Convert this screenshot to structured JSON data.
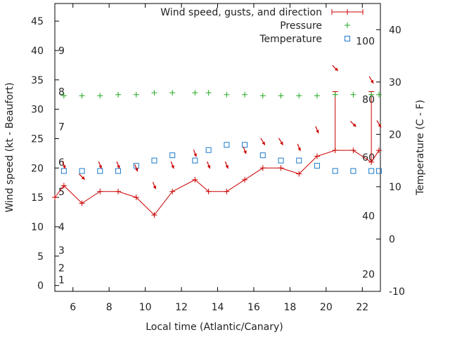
{
  "chart_data": {
    "type": "line",
    "xlabel": "Local time (Atlantic/Canary)",
    "ylabel": "Wind speed (kt - Beaufort)",
    "y2label": "Temperature (C - F)",
    "xlim": [
      5,
      23
    ],
    "ylim": [
      -1,
      48
    ],
    "y2lim": [
      -10,
      45
    ],
    "x_ticks": [
      6,
      8,
      10,
      12,
      14,
      16,
      18,
      20,
      22
    ],
    "y_ticks": [
      0,
      5,
      10,
      15,
      20,
      25,
      30,
      35,
      40,
      45
    ],
    "y2_ticks": [
      -10,
      0,
      10,
      20,
      30,
      40
    ],
    "beaufort_ticks": [
      {
        "kt": 1,
        "label": "1"
      },
      {
        "kt": 3,
        "label": "2"
      },
      {
        "kt": 6,
        "label": "3"
      },
      {
        "kt": 10,
        "label": "4"
      },
      {
        "kt": 16,
        "label": "5"
      },
      {
        "kt": 21,
        "label": "6"
      },
      {
        "kt": 27,
        "label": "7"
      },
      {
        "kt": 33,
        "label": "8"
      },
      {
        "kt": 40,
        "label": "9"
      }
    ],
    "fahrenheit_ticks": [
      {
        "c": -6.7,
        "label": "20"
      },
      {
        "c": 4.4,
        "label": "40"
      },
      {
        "c": 15.6,
        "label": "60"
      },
      {
        "c": 26.7,
        "label": "80"
      },
      {
        "c": 37.8,
        "label": "100"
      }
    ],
    "legend_position": "top-right",
    "series": [
      {
        "name": "Wind speed, gusts, and direction",
        "color": "#cc0000",
        "x": [
          5,
          5.5,
          6.5,
          7.5,
          8.5,
          9.5,
          10.5,
          11.5,
          12.75,
          13.5,
          14.5,
          15.5,
          16.5,
          17.5,
          18.5,
          19.5,
          20.5,
          21.5,
          22.5,
          22.92
        ],
        "values": [
          15,
          17,
          14,
          16,
          16,
          15,
          12,
          16,
          18,
          16,
          16,
          18,
          20,
          20,
          19,
          22,
          23,
          23,
          21,
          23
        ],
        "gusts": [
          {
            "x": 20.5,
            "value": 33
          },
          {
            "x": 22.5,
            "value": 33
          }
        ],
        "direction_arrows": [
          {
            "x": 5.5,
            "y": 20.5,
            "dx": 4,
            "dy": 10
          },
          {
            "x": 6.5,
            "y": 18.5,
            "dx": 8,
            "dy": 8
          },
          {
            "x": 7.5,
            "y": 20.5,
            "dx": 4,
            "dy": 10
          },
          {
            "x": 8.5,
            "y": 20.5,
            "dx": 4,
            "dy": 10
          },
          {
            "x": 9.5,
            "y": 20.0,
            "dx": 4,
            "dy": 10
          },
          {
            "x": 10.5,
            "y": 17.0,
            "dx": 4,
            "dy": 10
          },
          {
            "x": 11.5,
            "y": 20.5,
            "dx": 4,
            "dy": 10
          },
          {
            "x": 12.75,
            "y": 22.5,
            "dx": 4,
            "dy": 10
          },
          {
            "x": 13.5,
            "y": 20.5,
            "dx": 4,
            "dy": 10
          },
          {
            "x": 14.5,
            "y": 20.5,
            "dx": 4,
            "dy": 10
          },
          {
            "x": 15.5,
            "y": 23.0,
            "dx": 4,
            "dy": 10
          },
          {
            "x": 16.5,
            "y": 24.5,
            "dx": 6,
            "dy": 10
          },
          {
            "x": 17.5,
            "y": 24.5,
            "dx": 6,
            "dy": 10
          },
          {
            "x": 18.5,
            "y": 23.5,
            "dx": 4,
            "dy": 10
          },
          {
            "x": 19.5,
            "y": 26.5,
            "dx": 4,
            "dy": 10
          },
          {
            "x": 20.5,
            "y": 37.0,
            "dx": 8,
            "dy": 8
          },
          {
            "x": 21.5,
            "y": 27.5,
            "dx": 8,
            "dy": 8
          },
          {
            "x": 22.5,
            "y": 35.0,
            "dx": 6,
            "dy": 10
          },
          {
            "x": 22.92,
            "y": 27.5,
            "dx": 6,
            "dy": 10
          }
        ]
      },
      {
        "name": "Pressure",
        "color": "#22aa22",
        "marker": "plus",
        "x": [
          5.5,
          6.5,
          7.5,
          8.5,
          9.5,
          10.5,
          11.5,
          12.75,
          13.5,
          14.5,
          15.5,
          16.5,
          17.5,
          18.5,
          19.5,
          20.5,
          21.5,
          22.5,
          22.92
        ],
        "values": [
          32.3,
          32.3,
          32.3,
          32.5,
          32.5,
          32.8,
          32.8,
          32.8,
          32.8,
          32.5,
          32.5,
          32.3,
          32.3,
          32.3,
          32.3,
          32.5,
          32.5,
          32.5,
          32.5
        ]
      },
      {
        "name": "Temperature",
        "color": "#1a7acc",
        "marker": "square",
        "axis": "y2",
        "x": [
          5.5,
          6.5,
          7.5,
          8.5,
          9.5,
          10.5,
          11.5,
          12.75,
          13.5,
          14.5,
          15.5,
          16.5,
          17.5,
          18.5,
          19.5,
          20.5,
          21.5,
          22.5,
          22.92
        ],
        "values": [
          13,
          13,
          13,
          13,
          14,
          15,
          16,
          15,
          17,
          18,
          18,
          16,
          15,
          15,
          14,
          13,
          13,
          13,
          13
        ]
      }
    ]
  }
}
